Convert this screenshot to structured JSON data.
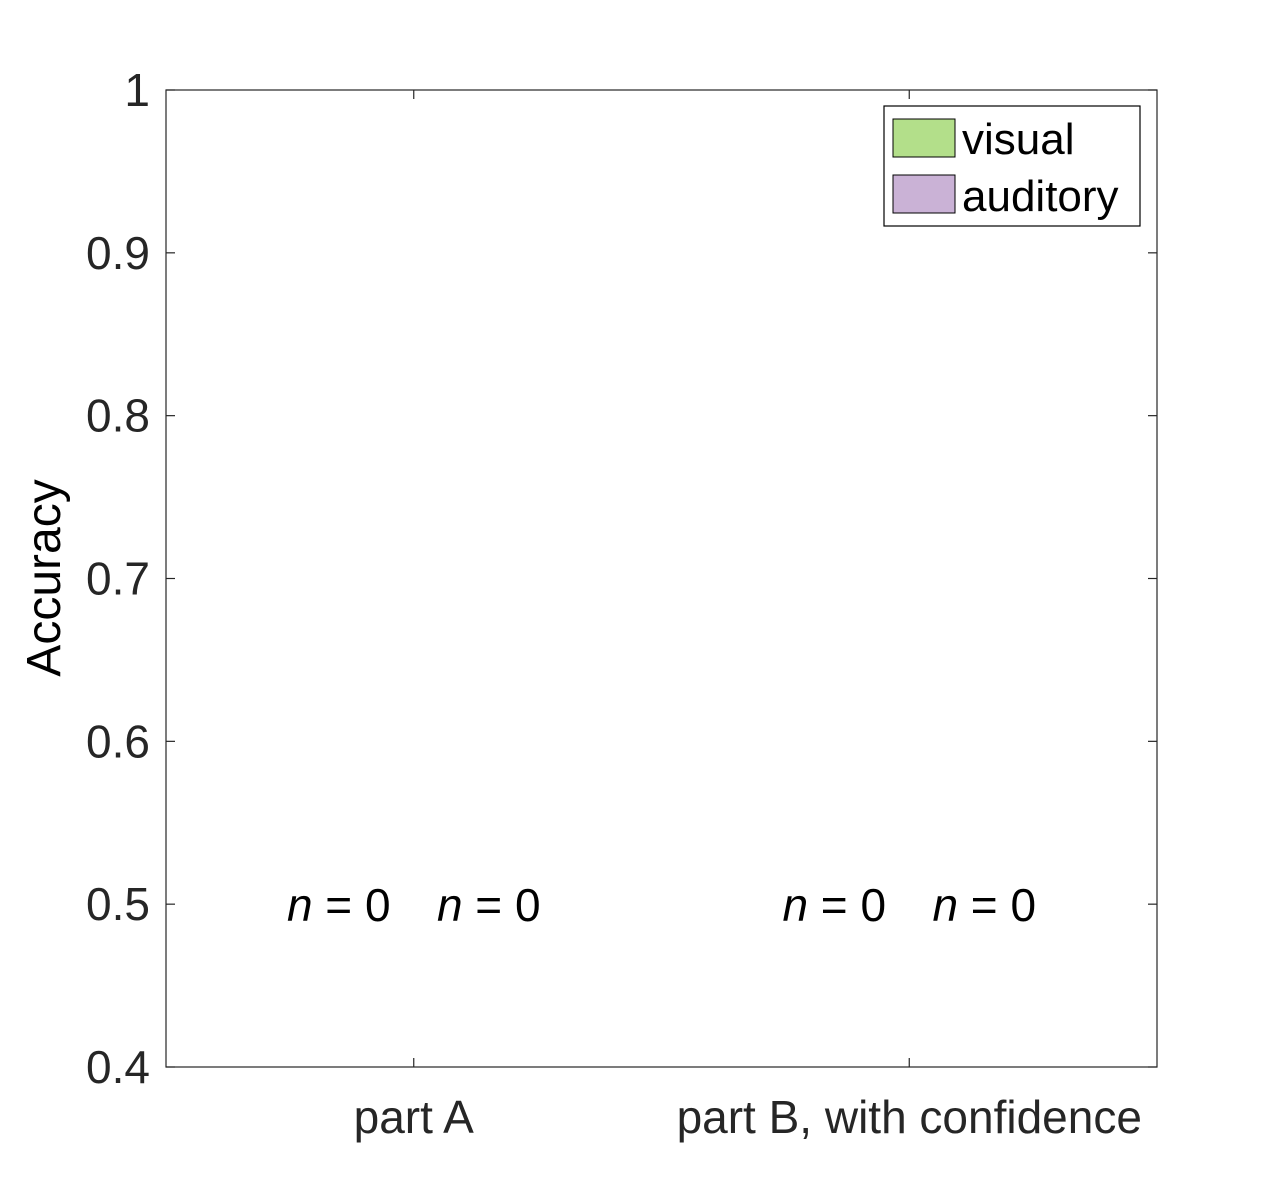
{
  "chart_data": {
    "type": "bar",
    "categories": [
      "part A",
      "part B, with confidence"
    ],
    "ylabel": "Accuracy",
    "xlabel": "",
    "ylim": [
      0.4,
      1
    ],
    "yticks": [
      0.4,
      0.5,
      0.6,
      0.7,
      0.8,
      0.9,
      1
    ],
    "ytick_labels": [
      "0.4",
      "0.5",
      "0.6",
      "0.7",
      "0.8",
      "0.9",
      "1"
    ],
    "grid": false,
    "legend_position": "top-right",
    "series": [
      {
        "name": "visual",
        "color": "#b3df8a",
        "values": [
          null,
          null
        ],
        "n_labels": [
          "n = 0",
          "n = 0"
        ]
      },
      {
        "name": "auditory",
        "color": "#cab2d6",
        "values": [
          null,
          null
        ],
        "n_labels": [
          "n = 0",
          "n = 0"
        ]
      }
    ],
    "annotation_y": 0.5
  }
}
